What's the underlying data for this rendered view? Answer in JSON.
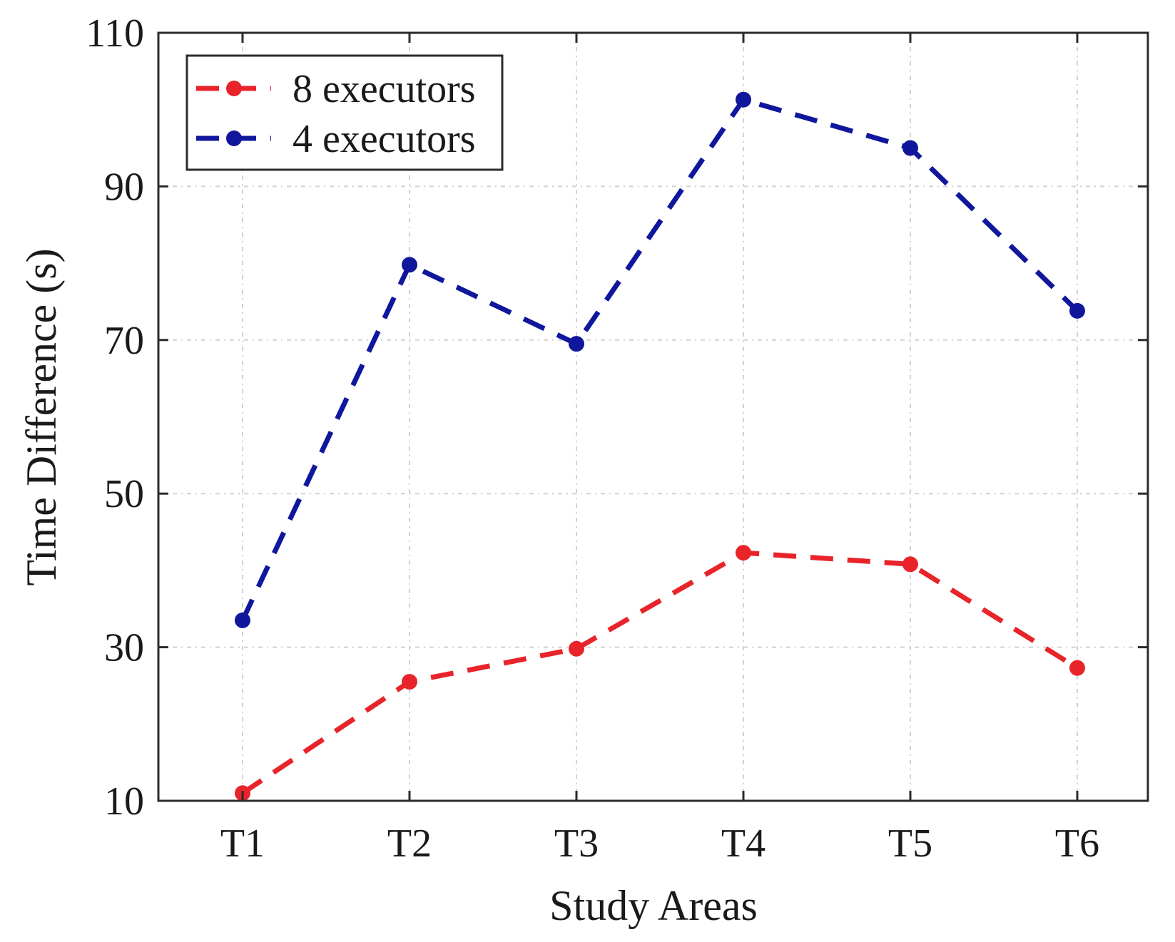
{
  "chart_data": {
    "type": "line",
    "title": "",
    "xlabel": "Study Areas",
    "ylabel": "Time Difference (s)",
    "categories": [
      "T1",
      "T2",
      "T3",
      "T4",
      "T5",
      "T6"
    ],
    "ylim": [
      10,
      110
    ],
    "yticks": [
      10,
      30,
      50,
      70,
      90,
      110
    ],
    "grid": true,
    "legend_position": "top-left",
    "series": [
      {
        "name": "8 executors",
        "color": "#e8242a",
        "values": [
          11,
          25.5,
          29.8,
          42.3,
          40.8,
          27.3
        ]
      },
      {
        "name": "4 executors",
        "color": "#10179c",
        "values": [
          33.5,
          79.8,
          69.5,
          101.3,
          95,
          73.8
        ]
      }
    ]
  }
}
